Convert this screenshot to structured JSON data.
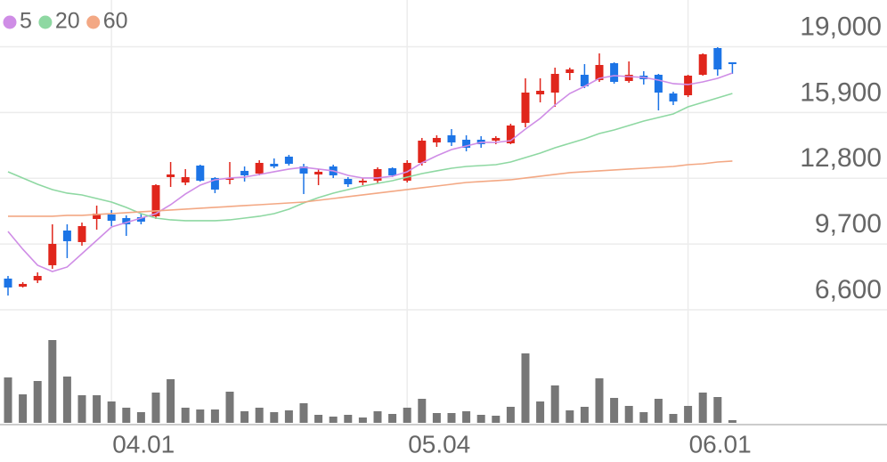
{
  "chart_data": {
    "type": "candlestick",
    "categories": [
      null,
      null,
      null,
      null,
      null,
      null,
      null,
      "04.01",
      null,
      null,
      null,
      null,
      null,
      null,
      null,
      null,
      null,
      null,
      null,
      null,
      null,
      null,
      null,
      null,
      null,
      null,
      null,
      "05.04",
      null,
      null,
      null,
      null,
      null,
      null,
      null,
      null,
      null,
      null,
      null,
      null,
      null,
      null,
      null,
      null,
      null,
      null,
      "06.01",
      null,
      null,
      null
    ],
    "open": [
      8070,
      7692,
      7986,
      8699,
      10335,
      9790,
      10880,
      11090,
      10922,
      10964,
      11006,
      12852,
      12600,
      13397,
      12810,
      12726,
      13146,
      13020,
      13481,
      13817,
      13355,
      12978,
      13355,
      12768,
      12600,
      12684,
      13272,
      12684,
      13523,
      14488,
      14824,
      14614,
      14614,
      14572,
      14446,
      15411,
      16753,
      16837,
      17760,
      17676,
      17425,
      18222,
      17383,
      17634,
      17676,
      16795,
      16711,
      17676,
      18935,
      18264
    ],
    "high": [
      8195,
      7902,
      8363,
      10628,
      10628,
      10712,
      11510,
      11300,
      11048,
      11132,
      12516,
      13565,
      13230,
      13439,
      12852,
      13565,
      13355,
      13649,
      13733,
      13901,
      13481,
      13230,
      13439,
      12852,
      12810,
      13314,
      13314,
      13649,
      14698,
      14824,
      15117,
      14824,
      14782,
      14782,
      15369,
      17508,
      17508,
      18012,
      18012,
      18180,
      18683,
      18264,
      18305,
      17844,
      17718,
      16879,
      17676,
      18683,
      18977,
      18264
    ],
    "low": [
      7272,
      7650,
      7860,
      8531,
      9035,
      9622,
      10377,
      10545,
      10083,
      10628,
      10880,
      12390,
      12474,
      12642,
      12097,
      12516,
      12642,
      12936,
      13272,
      13397,
      12055,
      12474,
      12810,
      12390,
      12474,
      12558,
      12852,
      12600,
      13397,
      14278,
      14320,
      14069,
      14236,
      14404,
      14404,
      15201,
      16376,
      16166,
      17425,
      17047,
      17341,
      17257,
      17299,
      17215,
      15998,
      16250,
      16627,
      17634,
      17634,
      17718
    ],
    "close": [
      7650,
      7818,
      8195,
      9706,
      9832,
      10545,
      11132,
      10796,
      10628,
      10754,
      12474,
      12978,
      12852,
      12684,
      12265,
      12810,
      12936,
      13523,
      13355,
      13481,
      13020,
      13104,
      12936,
      12516,
      12684,
      13230,
      12936,
      13523,
      14572,
      14698,
      14488,
      14236,
      14404,
      14698,
      15285,
      16837,
      16921,
      17718,
      17928,
      17131,
      18138,
      17341,
      17676,
      17466,
      16837,
      16418,
      17634,
      18641,
      17928,
      18180
    ],
    "up_color": "#e0261c",
    "down_color": "#1c74e6",
    "series": [
      {
        "name": "5",
        "color": "#cf8de6",
        "values": [
          10293,
          9454,
          8699,
          8405,
          8615,
          9244,
          9873,
          10503,
          10712,
          10922,
          11132,
          11551,
          12055,
          12474,
          12726,
          12810,
          12852,
          12978,
          13104,
          13230,
          13313,
          13230,
          13146,
          12936,
          12810,
          12810,
          12894,
          13104,
          13523,
          13859,
          14152,
          14320,
          14488,
          14488,
          14572,
          15117,
          15621,
          16250,
          16795,
          17131,
          17508,
          17634,
          17592,
          17550,
          17424,
          17257,
          17215,
          17341,
          17508,
          17760
        ]
      },
      {
        "name": "20",
        "color": "#8ed8a2",
        "values": [
          13104,
          12810,
          12516,
          12265,
          12097,
          12013,
          11845,
          11677,
          11426,
          11132,
          10922,
          10838,
          10796,
          10796,
          10796,
          10838,
          10922,
          11006,
          11132,
          11342,
          11635,
          11887,
          12097,
          12265,
          12432,
          12558,
          12684,
          12852,
          13020,
          13146,
          13271,
          13355,
          13397,
          13439,
          13565,
          13775,
          13985,
          14236,
          14446,
          14656,
          14907,
          15075,
          15285,
          15495,
          15663,
          15830,
          16166,
          16376,
          16585,
          16795
        ]
      },
      {
        "name": "60",
        "color": "#f3a884",
        "values": [
          11006,
          11006,
          11006,
          11006,
          11048,
          11048,
          11090,
          11132,
          11174,
          11216,
          11258,
          11300,
          11342,
          11384,
          11426,
          11468,
          11510,
          11551,
          11593,
          11635,
          11677,
          11761,
          11845,
          11929,
          12013,
          12097,
          12181,
          12265,
          12349,
          12432,
          12516,
          12600,
          12642,
          12684,
          12726,
          12810,
          12894,
          12978,
          13062,
          13104,
          13146,
          13188,
          13230,
          13271,
          13313,
          13355,
          13439,
          13481,
          13565,
          13607
        ]
      }
    ],
    "volume": {
      "color": "#777777",
      "ylim": [
        0,
        127
      ],
      "values": [
        51,
        32,
        47,
        93,
        52,
        31,
        31,
        24,
        17,
        12,
        34,
        49,
        17,
        15,
        15,
        35,
        13,
        17,
        12,
        14,
        22,
        9,
        7,
        9,
        6,
        13,
        10,
        17,
        27,
        11,
        11,
        13,
        9,
        8,
        18,
        78,
        24,
        42,
        14,
        18,
        50,
        28,
        19,
        12,
        27,
        10,
        19,
        34,
        29,
        3
      ]
    },
    "ylim": [
      6600,
      21200
    ],
    "yticks": [
      {
        "value": 6600,
        "label": "6,600"
      },
      {
        "value": 9700,
        "label": "9,700"
      },
      {
        "value": 12800,
        "label": "12,800"
      },
      {
        "value": 15900,
        "label": "15,900"
      },
      {
        "value": 19000,
        "label": "19,000"
      }
    ],
    "grid": true,
    "legend": "top-left"
  }
}
